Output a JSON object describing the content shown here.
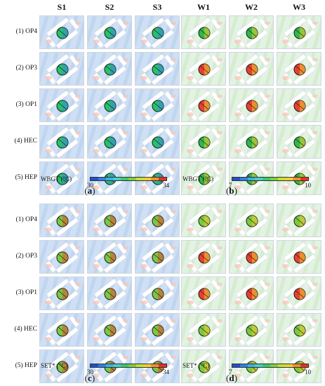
{
  "panels": [
    {
      "id": "a",
      "label": "a",
      "columns": [
        "S1",
        "S2",
        "S3"
      ],
      "rows": [
        "(1) OP4",
        "(2) OP3",
        "(3) OP1",
        "(4) HEC",
        "(5) HEP"
      ],
      "colorbar": {
        "title": "WBGT (°C)",
        "min": "30",
        "max": "34"
      },
      "background": "#cfe0f5",
      "disc_colors": [
        [
          "#27c26a",
          "#27c26a",
          "#27c26a"
        ],
        [
          "#27c26a",
          "#27c26a",
          "#27c26a"
        ],
        [
          "#27c26a",
          "#27c26a",
          "#27c26a"
        ],
        [
          "#27c26a",
          "#27c26a",
          "#27c26a"
        ],
        [
          "#27c26a",
          "#27c26a",
          "#27c26a"
        ]
      ],
      "disc_accent": "#3a8bd8"
    },
    {
      "id": "b",
      "label": "b",
      "columns": [
        "W1",
        "W2",
        "W3"
      ],
      "rows": [],
      "colorbar": {
        "title": "WBGT (°C)",
        "min": "7",
        "max": "10"
      },
      "background": "#e3f3e3",
      "disc_colors": [
        [
          "#2fb84a",
          "#2fb84a",
          "#2fb84a"
        ],
        [
          "#e84030",
          "#e84030",
          "#e84030"
        ],
        [
          "#e84030",
          "#e84030",
          "#e84030"
        ],
        [
          "#2fb84a",
          "#2fb84a",
          "#2fb84a"
        ],
        [
          "#2fb84a",
          "#2fb84a",
          "#2fb84a"
        ]
      ],
      "disc_accent": "#f0d030"
    },
    {
      "id": "c",
      "label": "c",
      "columns": [],
      "rows": [
        "(1) OP4",
        "(2) OP3",
        "(3) OP1",
        "(4) HEC",
        "(5) HEP"
      ],
      "colorbar": {
        "title": "SET* (°C)",
        "min": "30",
        "max": "34"
      },
      "background": "#cfe0f5",
      "disc_colors": [
        [
          "#7cc840",
          "#7cc840",
          "#7cc840"
        ],
        [
          "#7cc840",
          "#7cc840",
          "#7cc840"
        ],
        [
          "#7cc840",
          "#7cc840",
          "#7cc840"
        ],
        [
          "#7cc840",
          "#7cc840",
          "#7cc840"
        ],
        [
          "#7cc840",
          "#7cc840",
          "#7cc840"
        ]
      ],
      "disc_accent": "#e05030"
    },
    {
      "id": "d",
      "label": "d",
      "columns": [],
      "rows": [],
      "colorbar": {
        "title": "SET* (°C)",
        "min": "7",
        "max": "10"
      },
      "background": "#e3f3e3",
      "disc_colors": [
        [
          "#7cc840",
          "#7cc840",
          "#7cc840"
        ],
        [
          "#e84030",
          "#e84030",
          "#e84030"
        ],
        [
          "#e84030",
          "#e84030",
          "#e84030"
        ],
        [
          "#7cc840",
          "#7cc840",
          "#7cc840"
        ],
        [
          "#7cc840",
          "#7cc840",
          "#7cc840"
        ]
      ],
      "disc_accent": "#f0d030"
    }
  ],
  "colormap": [
    "#2050d0",
    "#2f7fe0",
    "#3cb0e8",
    "#44d0c8",
    "#3cc86c",
    "#7cd040",
    "#c8e030",
    "#f0d030",
    "#f09030",
    "#e83020"
  ]
}
